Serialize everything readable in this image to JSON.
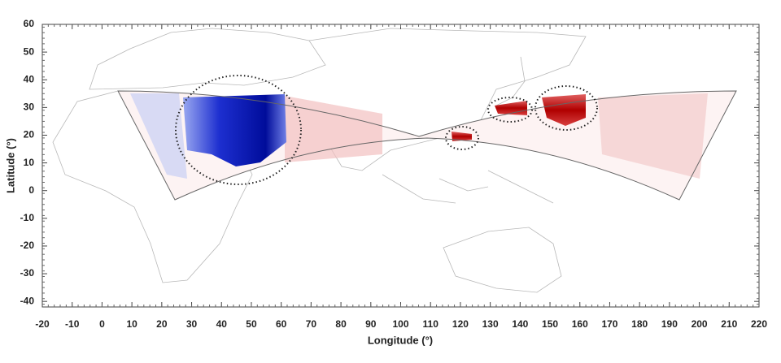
{
  "chart_data": {
    "type": "map",
    "xlabel": "Longitude (°)",
    "ylabel": "Latitude (°)",
    "xlim": [
      -20,
      220
    ],
    "ylim": [
      -42,
      60
    ],
    "xticks": [
      -20,
      -10,
      0,
      10,
      20,
      30,
      40,
      50,
      60,
      70,
      80,
      90,
      100,
      110,
      120,
      130,
      140,
      150,
      160,
      170,
      180,
      190,
      200,
      210,
      220
    ],
    "yticks": [
      -40,
      -30,
      -20,
      -10,
      0,
      10,
      20,
      30,
      40,
      50,
      60
    ]
  }
}
